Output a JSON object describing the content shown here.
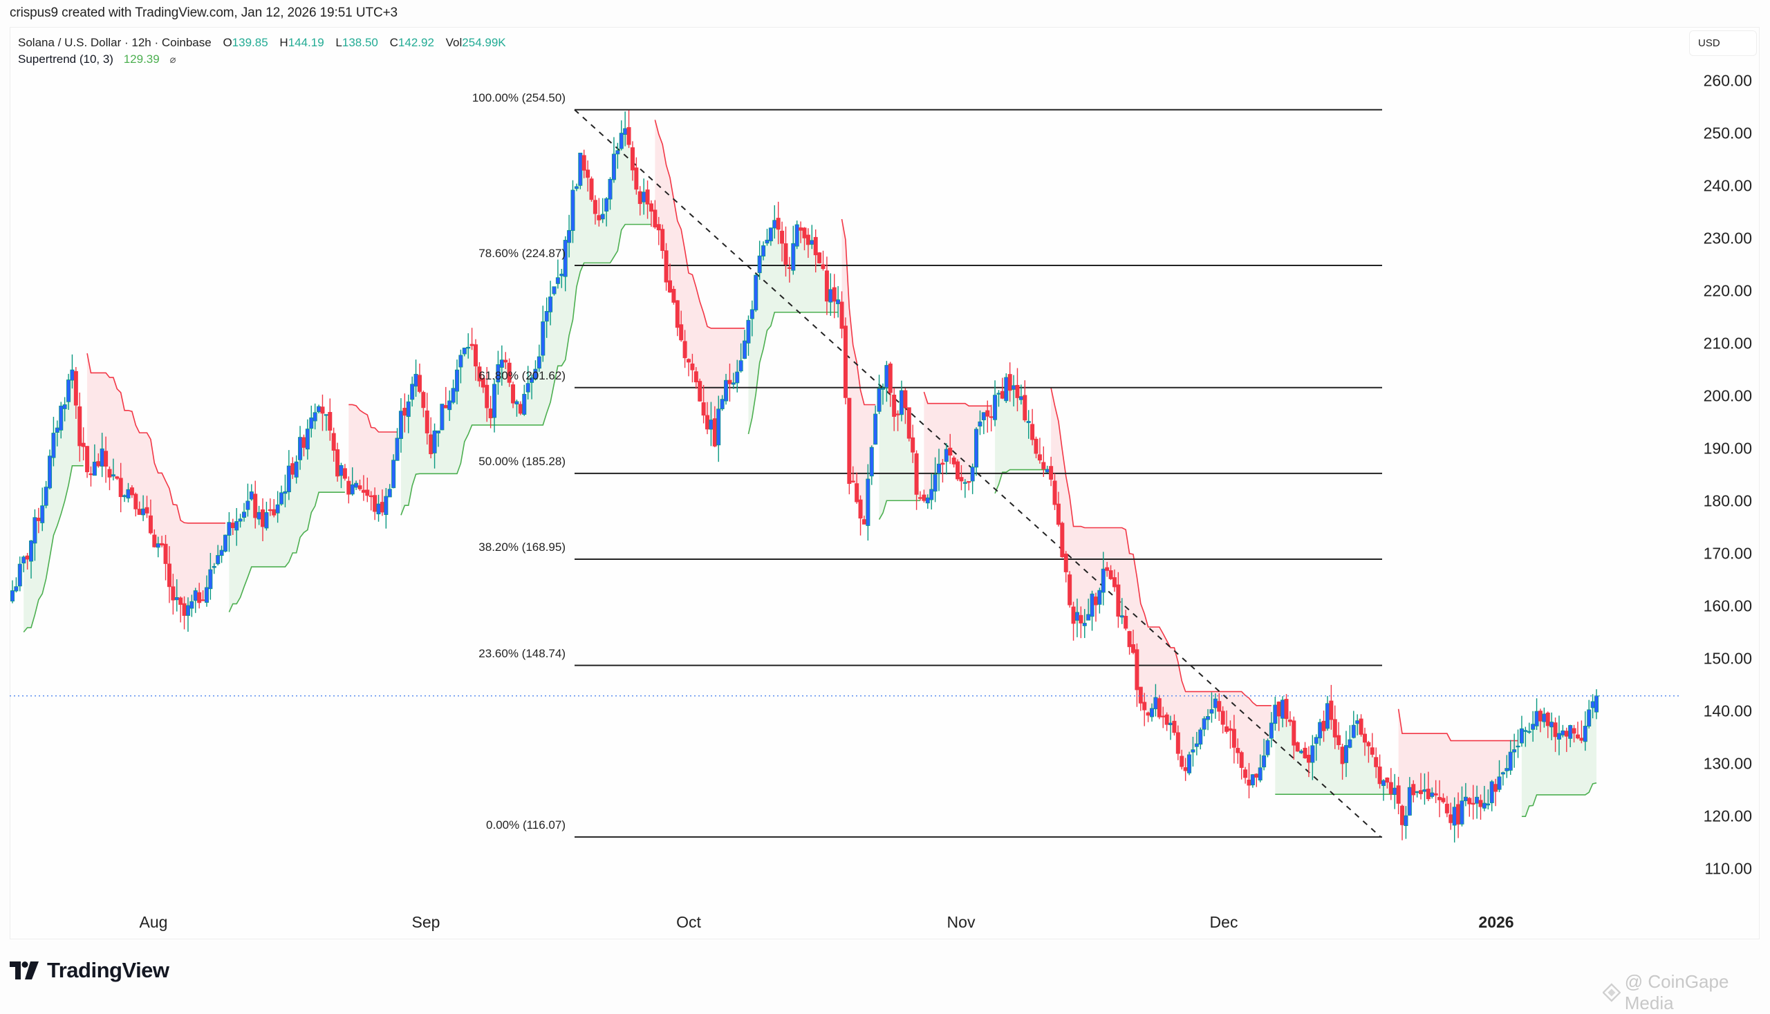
{
  "credit": "crispus9 created with TradingView.com, Jan 12, 2026 19:51 UTC+3",
  "legend": {
    "symbol": "Solana / U.S. Dollar · 12h · Coinbase",
    "open_label": "O",
    "open": "139.85",
    "high_label": "H",
    "high": "144.19",
    "low_label": "L",
    "low": "138.50",
    "close_label": "C",
    "close": "142.92",
    "vol_label": "Vol",
    "vol": "254.99K",
    "indicator": "Supertrend (10, 3)",
    "indicator_value": "129.39",
    "indicator_icon": "eye-off-icon",
    "indicator_icon_glyph": "⌀"
  },
  "currency_button": "USD",
  "branding": {
    "logo": "TradingView",
    "watermark": "@ CoinGape Media"
  },
  "colors": {
    "up_body": "#2962FF",
    "up_wick": "#089981",
    "down": "#F23645",
    "supertrend_up": "#4CAF50",
    "supertrend_down": "#F23645",
    "fill_up": "#E9F5EA",
    "fill_down": "#FDE7E9",
    "price_line": "#5B8DEF",
    "fib_line": "#222222",
    "legend_value": "#22AB94"
  },
  "chart_data": {
    "type": "candlestick",
    "title": "Solana / U.S. Dollar · 12h · Coinbase",
    "xlabel": "",
    "ylabel": "USD",
    "x_ticks": [
      "Aug",
      "Sep",
      "Oct",
      "Nov",
      "Dec",
      "2026"
    ],
    "y_ticks": [
      260,
      250,
      240,
      230,
      220,
      210,
      200,
      190,
      180,
      170,
      160,
      150,
      140,
      130,
      120,
      110
    ],
    "ylim": [
      100,
      265
    ],
    "grid": false,
    "last_price": 142.92,
    "ohlc_last": {
      "open": 139.85,
      "high": 144.19,
      "low": 138.5,
      "close": 142.92,
      "volume": "254.99K"
    },
    "supertrend": {
      "period": 10,
      "multiplier": 3,
      "last_value": 129.39
    },
    "fibonacci": [
      {
        "level": "100.00%",
        "price": 254.5
      },
      {
        "level": "78.60%",
        "price": 224.87
      },
      {
        "level": "61.80%",
        "price": 201.62
      },
      {
        "level": "50.00%",
        "price": 185.28
      },
      {
        "level": "38.20%",
        "price": 168.95
      },
      {
        "level": "23.60%",
        "price": 148.74
      },
      {
        "level": "0.00%",
        "price": 116.07
      }
    ],
    "close_waypoints": [
      [
        0,
        163
      ],
      [
        4,
        170
      ],
      [
        8,
        180
      ],
      [
        12,
        195
      ],
      [
        14,
        200
      ],
      [
        16,
        205
      ],
      [
        18,
        192
      ],
      [
        20,
        185
      ],
      [
        24,
        188
      ],
      [
        28,
        183
      ],
      [
        32,
        182
      ],
      [
        36,
        176
      ],
      [
        40,
        170
      ],
      [
        42,
        163
      ],
      [
        44,
        160
      ],
      [
        46,
        158
      ],
      [
        48,
        160
      ],
      [
        52,
        164
      ],
      [
        56,
        172
      ],
      [
        60,
        178
      ],
      [
        64,
        180
      ],
      [
        66,
        176
      ],
      [
        70,
        178
      ],
      [
        74,
        185
      ],
      [
        78,
        192
      ],
      [
        80,
        197
      ],
      [
        82,
        200
      ],
      [
        84,
        195
      ],
      [
        86,
        188
      ],
      [
        88,
        185
      ],
      [
        90,
        182
      ],
      [
        92,
        184
      ],
      [
        96,
        180
      ],
      [
        98,
        178
      ],
      [
        100,
        180
      ],
      [
        102,
        188
      ],
      [
        104,
        196
      ],
      [
        106,
        200
      ],
      [
        108,
        203
      ],
      [
        110,
        198
      ],
      [
        112,
        190
      ],
      [
        114,
        195
      ],
      [
        118,
        203
      ],
      [
        120,
        207
      ],
      [
        122,
        210
      ],
      [
        124,
        207
      ],
      [
        126,
        200
      ],
      [
        128,
        197
      ],
      [
        130,
        205
      ],
      [
        132,
        208
      ],
      [
        134,
        200
      ],
      [
        136,
        198
      ],
      [
        138,
        202
      ],
      [
        140,
        205
      ],
      [
        142,
        213
      ],
      [
        144,
        218
      ],
      [
        146,
        222
      ],
      [
        148,
        228
      ],
      [
        150,
        238
      ],
      [
        152,
        245
      ],
      [
        154,
        240
      ],
      [
        156,
        236
      ],
      [
        158,
        235
      ],
      [
        160,
        243
      ],
      [
        162,
        248
      ],
      [
        164,
        250
      ],
      [
        166,
        242
      ],
      [
        168,
        238
      ],
      [
        170,
        238
      ],
      [
        172,
        233
      ],
      [
        174,
        228
      ],
      [
        176,
        218
      ],
      [
        178,
        215
      ],
      [
        180,
        208
      ],
      [
        182,
        205
      ],
      [
        184,
        200
      ],
      [
        186,
        195
      ],
      [
        188,
        192
      ],
      [
        190,
        200
      ],
      [
        192,
        203
      ],
      [
        194,
        206
      ],
      [
        196,
        210
      ],
      [
        198,
        218
      ],
      [
        200,
        225
      ],
      [
        202,
        230
      ],
      [
        204,
        232
      ],
      [
        206,
        228
      ],
      [
        208,
        226
      ],
      [
        210,
        231
      ],
      [
        212,
        232
      ],
      [
        214,
        228
      ],
      [
        216,
        225
      ],
      [
        218,
        220
      ],
      [
        220,
        219
      ],
      [
        222,
        214
      ],
      [
        224,
        185
      ],
      [
        226,
        180
      ],
      [
        228,
        177
      ],
      [
        230,
        190
      ],
      [
        232,
        200
      ],
      [
        234,
        205
      ],
      [
        236,
        195
      ],
      [
        238,
        200
      ],
      [
        240,
        193
      ],
      [
        242,
        183
      ],
      [
        244,
        180
      ],
      [
        246,
        184
      ],
      [
        248,
        186
      ],
      [
        250,
        190
      ],
      [
        252,
        187
      ],
      [
        254,
        185
      ],
      [
        256,
        182
      ],
      [
        258,
        192
      ],
      [
        260,
        196
      ],
      [
        262,
        197
      ],
      [
        264,
        200
      ],
      [
        266,
        203
      ],
      [
        268,
        201
      ],
      [
        270,
        198
      ],
      [
        272,
        196
      ],
      [
        274,
        188
      ],
      [
        276,
        187
      ],
      [
        278,
        186
      ],
      [
        280,
        175
      ],
      [
        282,
        165
      ],
      [
        284,
        158
      ],
      [
        286,
        156
      ],
      [
        288,
        160
      ],
      [
        290,
        162
      ],
      [
        292,
        168
      ],
      [
        294,
        166
      ],
      [
        296,
        160
      ],
      [
        298,
        155
      ],
      [
        300,
        150
      ],
      [
        302,
        142
      ],
      [
        304,
        140
      ],
      [
        306,
        141
      ],
      [
        308,
        139
      ],
      [
        310,
        138
      ],
      [
        312,
        130
      ],
      [
        314,
        128
      ],
      [
        316,
        133
      ],
      [
        318,
        137
      ],
      [
        320,
        140
      ],
      [
        322,
        142
      ],
      [
        324,
        138
      ],
      [
        326,
        136
      ],
      [
        328,
        133
      ],
      [
        330,
        128
      ],
      [
        332,
        126
      ],
      [
        334,
        128
      ],
      [
        336,
        134
      ],
      [
        338,
        140
      ],
      [
        340,
        142
      ],
      [
        342,
        138
      ],
      [
        344,
        133
      ],
      [
        346,
        130
      ],
      [
        348,
        134
      ],
      [
        350,
        136
      ],
      [
        352,
        140
      ],
      [
        354,
        135
      ],
      [
        356,
        132
      ],
      [
        358,
        136
      ],
      [
        360,
        139
      ],
      [
        362,
        133
      ],
      [
        364,
        130
      ],
      [
        366,
        128
      ],
      [
        368,
        126
      ],
      [
        370,
        125
      ],
      [
        372,
        120
      ],
      [
        374,
        124
      ],
      [
        376,
        125
      ],
      [
        378,
        124
      ],
      [
        380,
        123
      ],
      [
        382,
        122
      ],
      [
        384,
        121
      ],
      [
        386,
        120
      ],
      [
        388,
        121
      ],
      [
        390,
        123
      ],
      [
        392,
        124
      ],
      [
        394,
        123
      ],
      [
        396,
        125
      ],
      [
        398,
        127
      ],
      [
        400,
        130
      ],
      [
        402,
        133
      ],
      [
        404,
        135
      ],
      [
        406,
        138
      ],
      [
        408,
        141
      ],
      [
        410,
        139
      ],
      [
        412,
        136
      ],
      [
        414,
        135
      ],
      [
        416,
        137
      ],
      [
        418,
        136
      ],
      [
        420,
        136
      ],
      [
        422,
        140
      ],
      [
        424,
        142.92
      ]
    ],
    "note": "Waypoints are [candle index, approx close]; 12h candles from ~Jul 20, 2025 to Jan 12, 2026."
  }
}
